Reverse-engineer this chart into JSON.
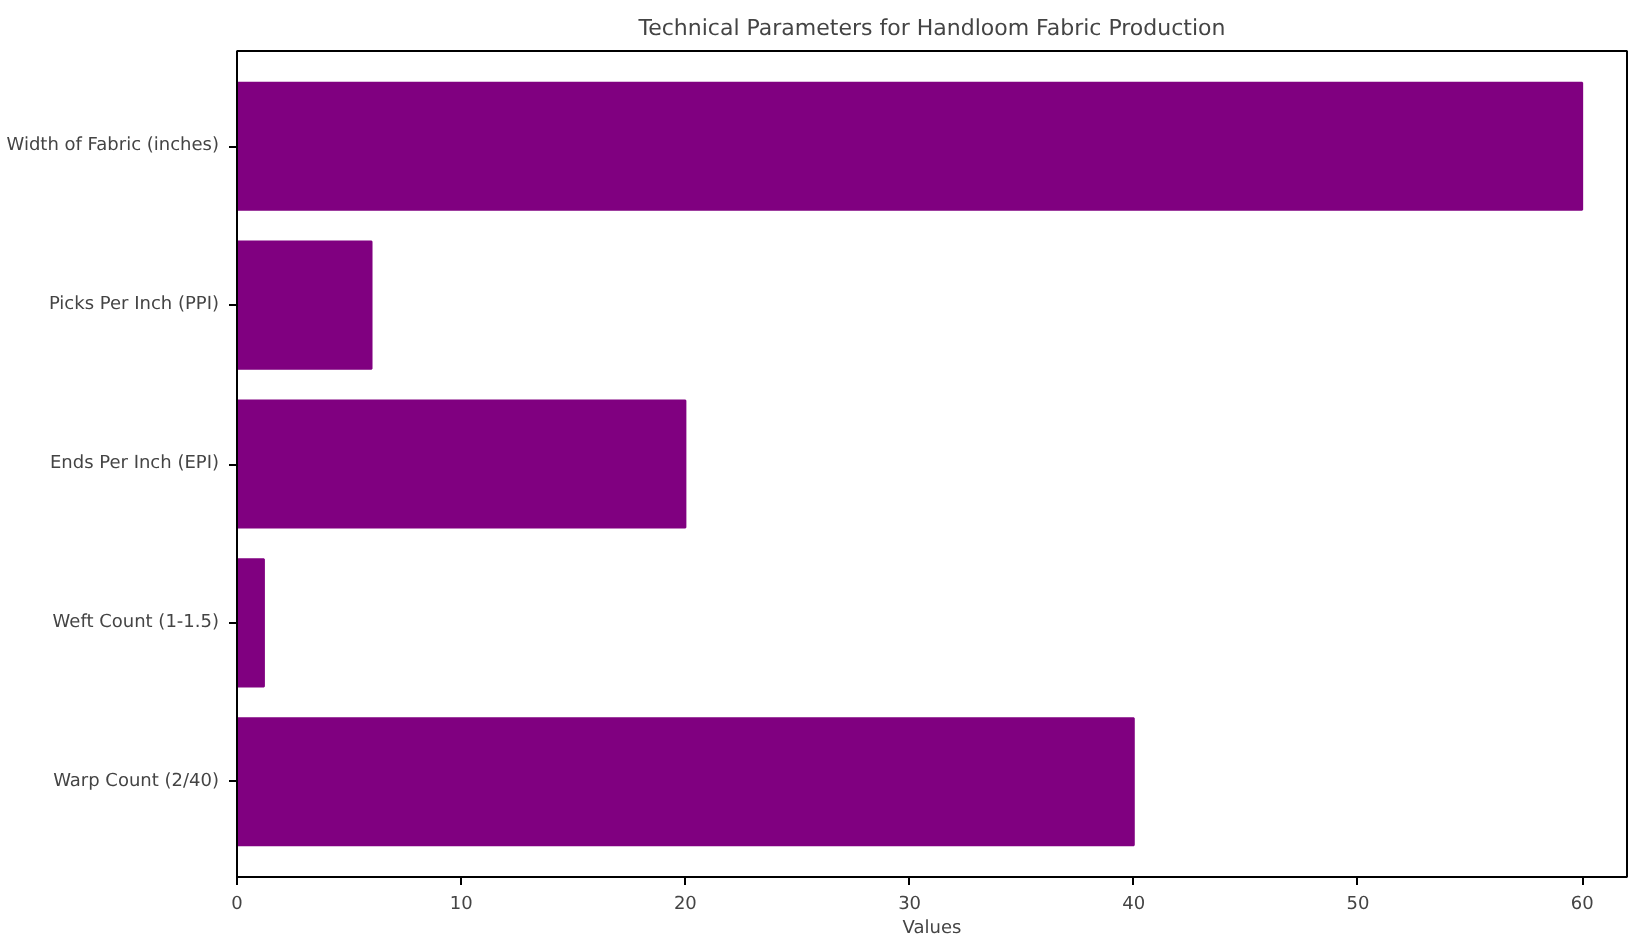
{
  "chart_data": {
    "type": "bar",
    "orientation": "horizontal",
    "title": "Technical Parameters for Handloom Fabric Production",
    "xlabel": "Values",
    "categories": [
      "Width of Fabric (inches)",
      "Picks Per Inch (PPI)",
      "Ends Per Inch (EPI)",
      "Weft Count (1-1.5)",
      "Warp Count (2/40)"
    ],
    "values": [
      60,
      6,
      20,
      1.2,
      40
    ],
    "color": "#800080",
    "xlim": [
      0,
      62
    ],
    "xticks": [
      0,
      10,
      20,
      30,
      40,
      50,
      60
    ],
    "grid": false
  }
}
